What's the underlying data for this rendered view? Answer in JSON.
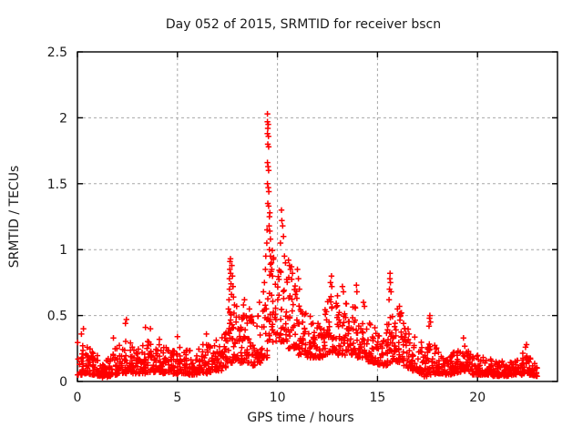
{
  "window": {
    "background": "#ffffff"
  },
  "chart_data": {
    "type": "scatter",
    "title": "Day 052 of 2015, SRMTID for receiver bscn",
    "xlabel": "GPS time / hours",
    "ylabel": "SRMTID / TECUs",
    "xlim": [
      0,
      24
    ],
    "ylim": [
      0,
      2.5
    ],
    "xticks": {
      "values": [
        0,
        5,
        10,
        15,
        20
      ],
      "labels": [
        "0",
        "5",
        "10",
        "15",
        "20"
      ]
    },
    "yticks": {
      "values": [
        0,
        0.5,
        1,
        1.5,
        2,
        2.5
      ],
      "labels": [
        "0",
        "0.5",
        "1",
        "1.5",
        "2",
        "2.5"
      ]
    },
    "grid": true,
    "grid_color": "#a8a8a8",
    "marker": {
      "shape": "plus",
      "color": "#ff0000",
      "size": 7
    },
    "max_point": [
      9.5,
      2.03
    ],
    "data_end_hour": 23.0,
    "band_profile": {
      "step_hours": 0.25,
      "description": "dense scatter band: [start_hour, band_low_TECU, band_high_TECU]",
      "segments": [
        [
          0,
          0.05,
          0.3
        ],
        [
          0.25,
          0.06,
          0.32
        ],
        [
          0.5,
          0.05,
          0.25
        ],
        [
          0.75,
          0.05,
          0.22
        ],
        [
          1,
          0.04,
          0.2
        ],
        [
          1.25,
          0.03,
          0.18
        ],
        [
          1.5,
          0.04,
          0.22
        ],
        [
          1.75,
          0.05,
          0.26
        ],
        [
          2,
          0.06,
          0.28
        ],
        [
          2.25,
          0.06,
          0.32
        ],
        [
          2.5,
          0.07,
          0.3
        ],
        [
          2.75,
          0.06,
          0.26
        ],
        [
          3,
          0.06,
          0.25
        ],
        [
          3.25,
          0.06,
          0.3
        ],
        [
          3.5,
          0.07,
          0.32
        ],
        [
          3.75,
          0.07,
          0.3
        ],
        [
          4,
          0.07,
          0.28
        ],
        [
          4.25,
          0.06,
          0.26
        ],
        [
          4.5,
          0.06,
          0.24
        ],
        [
          4.75,
          0.05,
          0.24
        ],
        [
          5,
          0.06,
          0.28
        ],
        [
          5.25,
          0.06,
          0.26
        ],
        [
          5.5,
          0.05,
          0.24
        ],
        [
          5.75,
          0.05,
          0.22
        ],
        [
          6,
          0.06,
          0.25
        ],
        [
          6.25,
          0.06,
          0.28
        ],
        [
          6.5,
          0.07,
          0.3
        ],
        [
          6.75,
          0.08,
          0.32
        ],
        [
          7,
          0.08,
          0.34
        ],
        [
          7.25,
          0.1,
          0.38
        ],
        [
          7.5,
          0.14,
          0.55
        ],
        [
          7.75,
          0.16,
          0.58
        ],
        [
          8,
          0.14,
          0.5
        ],
        [
          8.25,
          0.15,
          0.55
        ],
        [
          8.5,
          0.14,
          0.5
        ],
        [
          8.75,
          0.12,
          0.45
        ],
        [
          9,
          0.14,
          0.5
        ],
        [
          9.25,
          0.18,
          0.58
        ],
        [
          9.5,
          0.3,
          1.0
        ],
        [
          9.75,
          0.3,
          0.95
        ],
        [
          10,
          0.3,
          0.85
        ],
        [
          10.25,
          0.28,
          0.78
        ],
        [
          10.5,
          0.25,
          0.8
        ],
        [
          10.75,
          0.25,
          0.75
        ],
        [
          11,
          0.2,
          0.62
        ],
        [
          11.25,
          0.2,
          0.55
        ],
        [
          11.5,
          0.18,
          0.5
        ],
        [
          11.75,
          0.18,
          0.48
        ],
        [
          12,
          0.18,
          0.5
        ],
        [
          12.25,
          0.2,
          0.55
        ],
        [
          12.5,
          0.22,
          0.65
        ],
        [
          12.75,
          0.22,
          0.6
        ],
        [
          13,
          0.2,
          0.55
        ],
        [
          13.25,
          0.2,
          0.6
        ],
        [
          13.5,
          0.2,
          0.55
        ],
        [
          13.75,
          0.2,
          0.6
        ],
        [
          14,
          0.18,
          0.55
        ],
        [
          14.25,
          0.18,
          0.5
        ],
        [
          14.5,
          0.15,
          0.45
        ],
        [
          14.75,
          0.14,
          0.42
        ],
        [
          15,
          0.12,
          0.4
        ],
        [
          15.25,
          0.12,
          0.45
        ],
        [
          15.5,
          0.14,
          0.55
        ],
        [
          15.75,
          0.15,
          0.5
        ],
        [
          16,
          0.14,
          0.55
        ],
        [
          16.25,
          0.12,
          0.45
        ],
        [
          16.5,
          0.1,
          0.4
        ],
        [
          16.75,
          0.08,
          0.35
        ],
        [
          17,
          0.06,
          0.3
        ],
        [
          17.25,
          0.03,
          0.2
        ],
        [
          17.5,
          0.05,
          0.3
        ],
        [
          17.75,
          0.05,
          0.28
        ],
        [
          18,
          0.06,
          0.25
        ],
        [
          18.25,
          0.05,
          0.22
        ],
        [
          18.5,
          0.05,
          0.2
        ],
        [
          18.75,
          0.06,
          0.24
        ],
        [
          19,
          0.07,
          0.28
        ],
        [
          19.25,
          0.08,
          0.3
        ],
        [
          19.5,
          0.06,
          0.24
        ],
        [
          19.75,
          0.05,
          0.22
        ],
        [
          20,
          0.05,
          0.2
        ],
        [
          20.25,
          0.05,
          0.2
        ],
        [
          20.5,
          0.05,
          0.18
        ],
        [
          20.75,
          0.04,
          0.18
        ],
        [
          21,
          0.04,
          0.16
        ],
        [
          21.25,
          0.04,
          0.16
        ],
        [
          21.5,
          0.04,
          0.15
        ],
        [
          21.75,
          0.05,
          0.16
        ],
        [
          22,
          0.05,
          0.18
        ],
        [
          22.25,
          0.06,
          0.22
        ],
        [
          22.5,
          0.05,
          0.18
        ],
        [
          22.75,
          0.04,
          0.14
        ]
      ]
    },
    "peak_points": [
      [
        0.2,
        0.36
      ],
      [
        0.3,
        0.4
      ],
      [
        1.8,
        0.33
      ],
      [
        2.4,
        0.44
      ],
      [
        2.45,
        0.47
      ],
      [
        3.4,
        0.41
      ],
      [
        3.65,
        0.4
      ],
      [
        4.1,
        0.32
      ],
      [
        5.0,
        0.34
      ],
      [
        6.45,
        0.36
      ],
      [
        7.55,
        0.55
      ],
      [
        7.58,
        0.62
      ],
      [
        7.6,
        0.7
      ],
      [
        7.6,
        0.78
      ],
      [
        7.62,
        0.85
      ],
      [
        7.63,
        0.91
      ],
      [
        7.65,
        0.93
      ],
      [
        7.66,
        0.82
      ],
      [
        7.68,
        0.74
      ],
      [
        7.7,
        0.66
      ],
      [
        7.72,
        0.88
      ],
      [
        7.75,
        0.8
      ],
      [
        7.78,
        0.72
      ],
      [
        7.8,
        0.64
      ],
      [
        7.85,
        0.58
      ],
      [
        8.3,
        0.58
      ],
      [
        8.35,
        0.62
      ],
      [
        8.6,
        0.55
      ],
      [
        9.1,
        0.6
      ],
      [
        9.3,
        0.68
      ],
      [
        9.35,
        0.75
      ],
      [
        9.4,
        0.85
      ],
      [
        9.42,
        0.95
      ],
      [
        9.47,
        1.05
      ],
      [
        9.48,
        1.15
      ],
      [
        9.5,
        2.03
      ],
      [
        9.5,
        1.97
      ],
      [
        9.52,
        1.92
      ],
      [
        9.54,
        1.95
      ],
      [
        9.5,
        1.88
      ],
      [
        9.55,
        1.86
      ],
      [
        9.52,
        1.8
      ],
      [
        9.56,
        1.78
      ],
      [
        9.5,
        1.66
      ],
      [
        9.53,
        1.63
      ],
      [
        9.56,
        1.6
      ],
      [
        9.5,
        1.5
      ],
      [
        9.54,
        1.47
      ],
      [
        9.57,
        1.44
      ],
      [
        9.52,
        1.35
      ],
      [
        9.56,
        1.33
      ],
      [
        9.6,
        1.25
      ],
      [
        9.62,
        1.28
      ],
      [
        9.58,
        1.18
      ],
      [
        9.62,
        1.14
      ],
      [
        9.65,
        1.08
      ],
      [
        9.6,
        1.0
      ],
      [
        9.65,
        0.95
      ],
      [
        9.7,
        0.9
      ],
      [
        9.72,
        0.85
      ],
      [
        9.75,
        0.8
      ],
      [
        10.15,
        1.05
      ],
      [
        10.2,
        1.3
      ],
      [
        10.22,
        1.22
      ],
      [
        10.26,
        1.18
      ],
      [
        10.3,
        1.1
      ],
      [
        10.35,
        0.95
      ],
      [
        10.4,
        0.9
      ],
      [
        10.55,
        0.92
      ],
      [
        10.6,
        0.88
      ],
      [
        10.65,
        0.85
      ],
      [
        10.7,
        0.87
      ],
      [
        10.75,
        0.82
      ],
      [
        11.0,
        0.85
      ],
      [
        11.05,
        0.78
      ],
      [
        11.1,
        0.7
      ],
      [
        12.65,
        0.75
      ],
      [
        12.7,
        0.8
      ],
      [
        12.72,
        0.72
      ],
      [
        13.0,
        0.65
      ],
      [
        13.25,
        0.72
      ],
      [
        13.3,
        0.68
      ],
      [
        13.95,
        0.73
      ],
      [
        13.97,
        0.68
      ],
      [
        14.3,
        0.6
      ],
      [
        14.35,
        0.57
      ],
      [
        15.58,
        0.62
      ],
      [
        15.6,
        0.7
      ],
      [
        15.62,
        0.78
      ],
      [
        15.63,
        0.82
      ],
      [
        15.65,
        0.75
      ],
      [
        15.68,
        0.68
      ],
      [
        16.0,
        0.55
      ],
      [
        16.1,
        0.57
      ],
      [
        16.2,
        0.52
      ],
      [
        17.58,
        0.42
      ],
      [
        17.6,
        0.48
      ],
      [
        17.62,
        0.5
      ],
      [
        17.65,
        0.45
      ],
      [
        19.3,
        0.33
      ],
      [
        22.4,
        0.26
      ],
      [
        22.45,
        0.28
      ]
    ]
  }
}
